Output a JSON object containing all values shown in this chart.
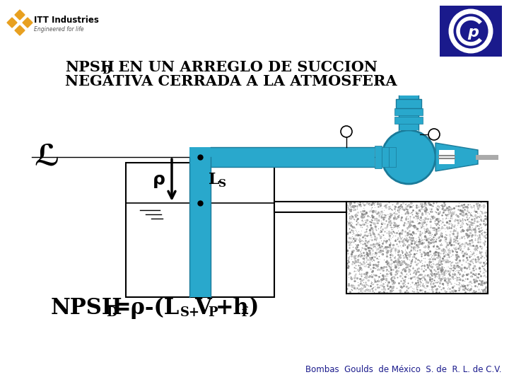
{
  "title_line1": "NPSH",
  "title_sub": "D",
  "title_line1_rest": "  EN UN ARREGLO DE SUCCION",
  "title_line2": "NEGATIVA CERRADA A LA ATMOSFERA",
  "footer": "Bombas  Goulds  de México  S. de  R. L. de C.V.",
  "bg_color": "#ffffff",
  "cyan_color": "#29a8cc",
  "dark_cyan": "#1a7a99",
  "blue_dark": "#1a1a8c",
  "text_color": "#000000",
  "itt_gold": "#e8a020",
  "goulds_blue": "#1a1a8c",
  "gray_base": "#b0b0b0",
  "gray_noise": "#888888"
}
